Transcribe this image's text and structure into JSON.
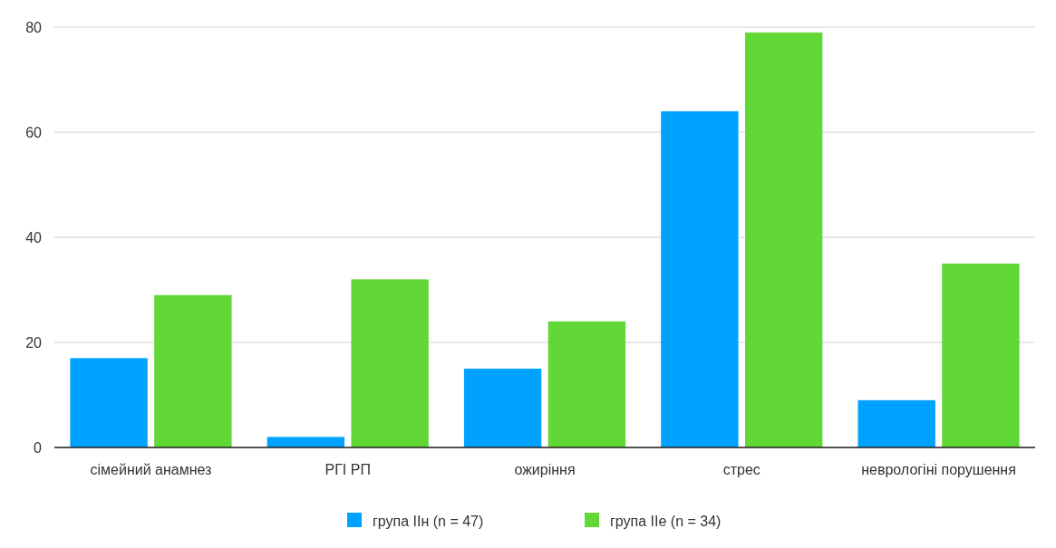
{
  "chart_data": {
    "type": "bar",
    "categories": [
      "сімейний анамнез",
      "РГІ РП",
      "ожиріння",
      "стрес",
      "неврологіні порушення"
    ],
    "series": [
      {
        "name": "група IIн (n = 47)",
        "color": "#00a2ff",
        "values": [
          17,
          2,
          15,
          64,
          9
        ]
      },
      {
        "name": "група IIe (n = 34)",
        "color": "#61d836",
        "values": [
          29,
          32,
          24,
          79,
          35
        ]
      }
    ],
    "ylim": [
      0,
      80
    ],
    "yticks": [
      0,
      20,
      40,
      60,
      80
    ],
    "grid": "y",
    "legend": "bottom"
  }
}
